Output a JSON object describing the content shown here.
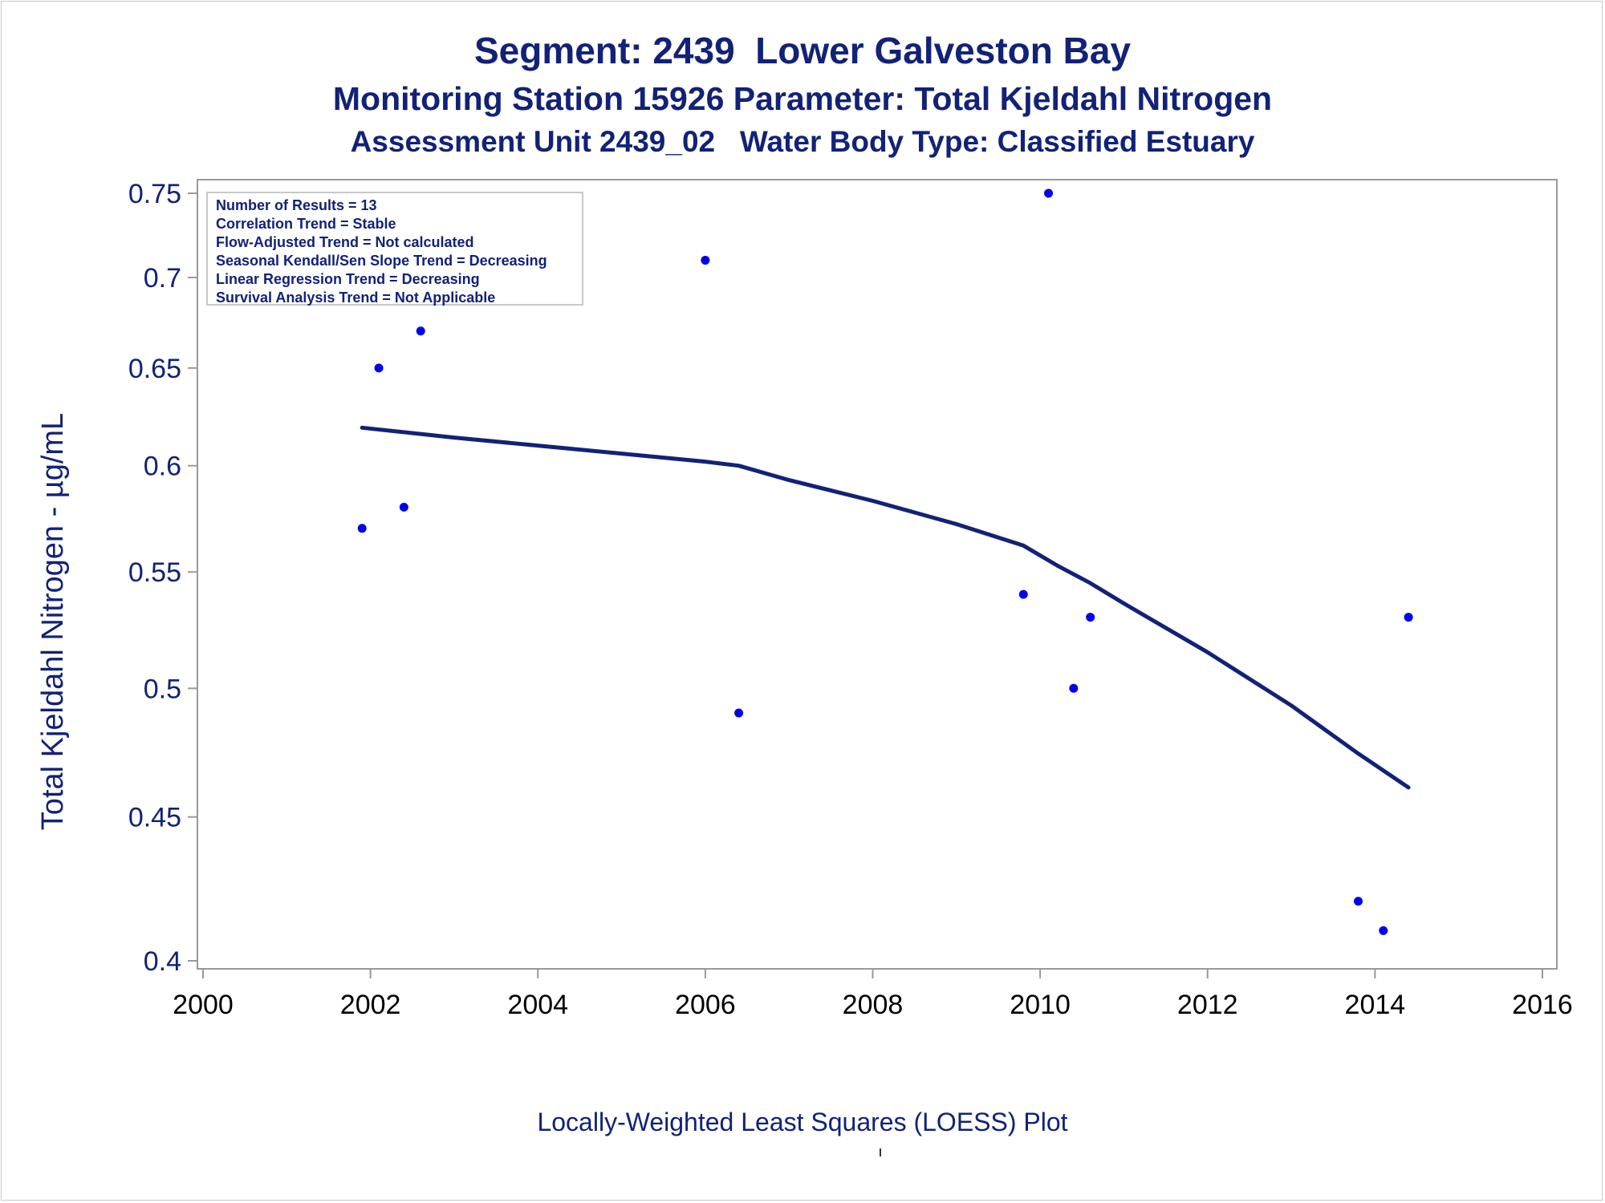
{
  "header": {
    "title": "Segment: 2439  Lower Galveston Bay",
    "subtitle": "Monitoring Station 15926 Parameter: Total Kjeldahl Nitrogen",
    "subtitle2": "Assessment Unit 2439_02   Water Body Type: Classified Estuary"
  },
  "stats": [
    "Number of Results = 13",
    "Correlation Trend = Stable",
    "Flow-Adjusted Trend = Not calculated",
    "Seasonal Kendall/Sen Slope Trend = Decreasing",
    "Linear Regression Trend = Decreasing",
    "Survival Analysis Trend = Not Applicable"
  ],
  "footer": {
    "caption": "Locally-Weighted Least Squares (LOESS) Plot"
  },
  "chart_data": {
    "type": "scatter",
    "title": "Segment: 2439  Lower Galveston Bay",
    "xlabel": "",
    "ylabel": "Total Kjeldahl Nitrogen -  µg/mL",
    "xlim": [
      2000,
      2016
    ],
    "ylim": [
      0.4,
      0.75
    ],
    "y_scale": "log",
    "grid": false,
    "x_ticks": [
      "2000",
      "2002",
      "2004",
      "2006",
      "2008",
      "2010",
      "2012",
      "2014",
      "2016"
    ],
    "y_ticks": [
      "0.4",
      "0.45",
      "0.5",
      "0.55",
      "0.6",
      "0.65",
      "0.7",
      "0.75"
    ],
    "x_tick_values": [
      2000,
      2002,
      2004,
      2006,
      2008,
      2010,
      2012,
      2014,
      2016
    ],
    "y_tick_values": [
      0.4,
      0.45,
      0.5,
      0.55,
      0.6,
      0.65,
      0.7,
      0.75
    ],
    "points": [
      {
        "x": 2001.9,
        "y": 0.57
      },
      {
        "x": 2002.1,
        "y": 0.65
      },
      {
        "x": 2002.4,
        "y": 0.58
      },
      {
        "x": 2002.6,
        "y": 0.67
      },
      {
        "x": 2006.0,
        "y": 0.71
      },
      {
        "x": 2006.4,
        "y": 0.49
      },
      {
        "x": 2009.8,
        "y": 0.54
      },
      {
        "x": 2010.1,
        "y": 0.75
      },
      {
        "x": 2010.4,
        "y": 0.5
      },
      {
        "x": 2010.6,
        "y": 0.53
      },
      {
        "x": 2013.8,
        "y": 0.42
      },
      {
        "x": 2014.1,
        "y": 0.41
      },
      {
        "x": 2014.4,
        "y": 0.53
      }
    ],
    "loess": [
      {
        "x": 2001.9,
        "y": 0.619
      },
      {
        "x": 2003.0,
        "y": 0.614
      },
      {
        "x": 2004.0,
        "y": 0.61
      },
      {
        "x": 2005.0,
        "y": 0.606
      },
      {
        "x": 2006.0,
        "y": 0.602
      },
      {
        "x": 2006.4,
        "y": 0.6
      },
      {
        "x": 2007.0,
        "y": 0.593
      },
      {
        "x": 2008.0,
        "y": 0.583
      },
      {
        "x": 2009.0,
        "y": 0.572
      },
      {
        "x": 2009.8,
        "y": 0.562
      },
      {
        "x": 2010.2,
        "y": 0.553
      },
      {
        "x": 2010.6,
        "y": 0.545
      },
      {
        "x": 2011.0,
        "y": 0.536
      },
      {
        "x": 2012.0,
        "y": 0.515
      },
      {
        "x": 2013.0,
        "y": 0.493
      },
      {
        "x": 2013.8,
        "y": 0.474
      },
      {
        "x": 2014.4,
        "y": 0.461
      }
    ],
    "colors": {
      "points": "#0000ee",
      "loess": "#112277",
      "text": "#112277",
      "axis": "#999999"
    }
  }
}
